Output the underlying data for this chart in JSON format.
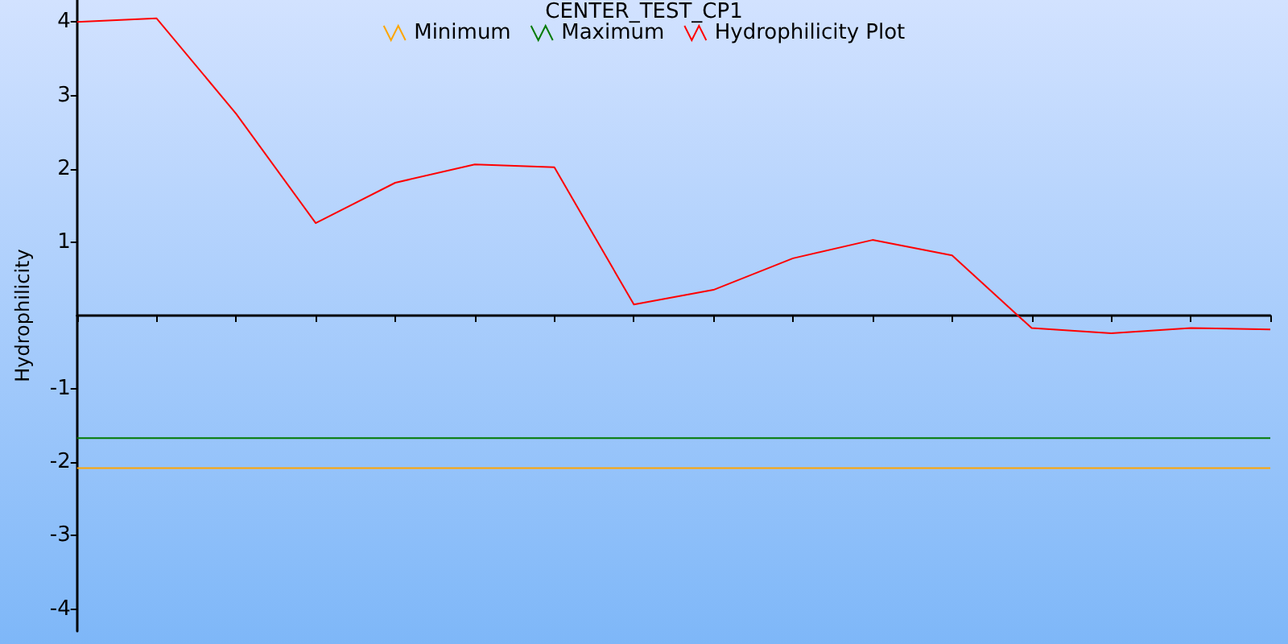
{
  "chart_data": {
    "type": "line",
    "title": "CENTER_TEST_CP1",
    "ylabel": "Hydrophilicity",
    "categories": [
      null,
      null,
      null,
      null,
      null,
      null,
      null,
      null,
      null,
      null,
      null,
      null,
      null,
      null,
      null,
      null
    ],
    "series": [
      {
        "name": "Minimum",
        "color": "#ffa500",
        "values": [
          -2.08,
          -2.08,
          -2.08,
          -2.08,
          -2.08,
          -2.08,
          -2.08,
          -2.08,
          -2.08,
          -2.08,
          -2.08,
          -2.08,
          -2.08,
          -2.08,
          -2.08,
          -2.08
        ]
      },
      {
        "name": "Maximum",
        "color": "#007a00",
        "values": [
          -1.67,
          -1.67,
          -1.67,
          -1.67,
          -1.67,
          -1.67,
          -1.67,
          -1.67,
          -1.67,
          -1.67,
          -1.67,
          -1.67,
          -1.67,
          -1.67,
          -1.67,
          -1.67
        ]
      },
      {
        "name": "Hydrophilicity Plot",
        "color": "#ff0000",
        "values": [
          4.0,
          4.05,
          2.75,
          1.26,
          1.81,
          2.06,
          2.02,
          0.15,
          0.35,
          0.78,
          1.03,
          0.82,
          -0.17,
          -0.24,
          -0.17,
          -0.19
        ]
      }
    ],
    "ylim": [
      -4.3,
      4.3
    ],
    "yticks": [
      -4,
      -3,
      -2,
      -1,
      1,
      2,
      3,
      4
    ],
    "grid": false,
    "legend": "top",
    "marker": "none",
    "line_style": "solid"
  }
}
